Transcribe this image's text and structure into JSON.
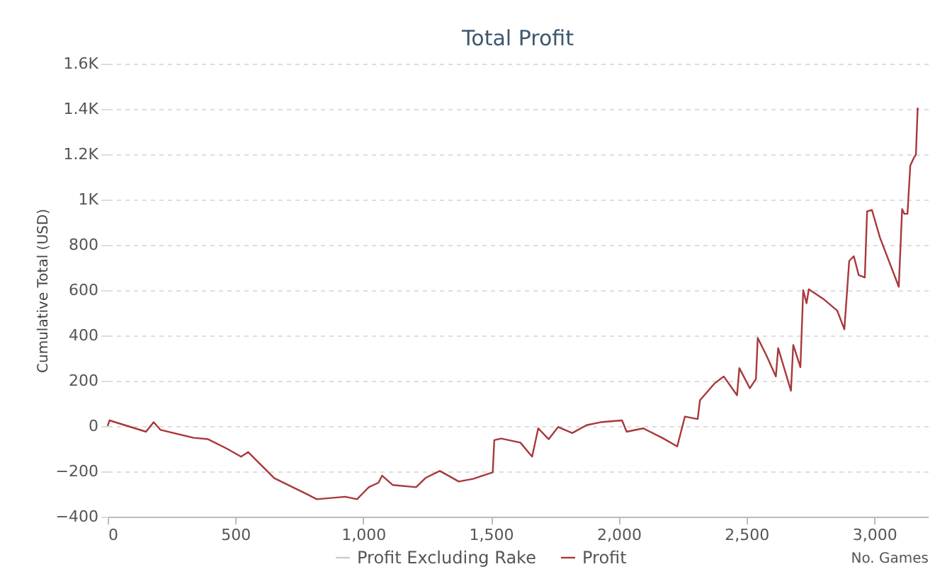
{
  "chart_data": {
    "type": "line",
    "title": "Total Profit",
    "xlabel": "No. Games",
    "ylabel": "Cumulative Total (USD)",
    "xlim": [
      0,
      3210
    ],
    "xticks": [
      {
        "value": 0,
        "label": "0"
      },
      {
        "value": 500,
        "label": "500"
      },
      {
        "value": 1000,
        "label": "1,000"
      },
      {
        "value": 1500,
        "label": "1,500"
      },
      {
        "value": 2000,
        "label": "2,000"
      },
      {
        "value": 2500,
        "label": "2,500"
      },
      {
        "value": 3000,
        "label": "3,000"
      }
    ],
    "ylim": [
      -400,
      1600
    ],
    "yticks": [
      -400,
      -200,
      0,
      200,
      400,
      600,
      800,
      {
        "value": 1000,
        "label": "1K"
      },
      {
        "value": 1200,
        "label": "1.2K"
      },
      {
        "value": 1400,
        "label": "1.4K"
      },
      {
        "value": 1600,
        "label": "1.6K"
      }
    ],
    "grid": "y",
    "legend": "bottom",
    "marker": "none",
    "line_style": "solid",
    "series": [
      {
        "name": "Profit Excluding Rake",
        "color": "#cccccc"
      },
      {
        "name": "Profit",
        "color": "#a8383b",
        "x": [
          0,
          7,
          150,
          180,
          207,
          337,
          393,
          467,
          522,
          550,
          652,
          782,
          818,
          930,
          976,
          1022,
          1060,
          1074,
          1115,
          1207,
          1244,
          1300,
          1374,
          1430,
          1507,
          1513,
          1540,
          1615,
          1661,
          1685,
          1726,
          1763,
          1818,
          1874,
          1929,
          2013,
          2031,
          2096,
          2170,
          2229,
          2259,
          2309,
          2318,
          2374,
          2411,
          2463,
          2472,
          2513,
          2537,
          2544,
          2578,
          2615,
          2624,
          2674,
          2683,
          2711,
          2722,
          2735,
          2744,
          2800,
          2855,
          2883,
          2902,
          2920,
          2939,
          2963,
          2972,
          2991,
          3022,
          3096,
          3109,
          3118,
          3130,
          3141,
          3156,
          3163,
          3170
        ],
        "values": [
          0,
          25,
          -25,
          17,
          -17,
          -52,
          -58,
          -100,
          -135,
          -115,
          -230,
          -302,
          -323,
          -312,
          -323,
          -270,
          -250,
          -219,
          -260,
          -270,
          -229,
          -198,
          -245,
          -233,
          -204,
          -62,
          -55,
          -73,
          -135,
          -10,
          -58,
          -4,
          -31,
          4,
          17,
          25,
          -25,
          -10,
          -52,
          -90,
          42,
          31,
          114,
          187,
          219,
          136,
          256,
          167,
          208,
          389,
          312,
          219,
          344,
          156,
          358,
          260,
          600,
          542,
          604,
          562,
          510,
          427,
          729,
          750,
          667,
          656,
          948,
          954,
          833,
          615,
          958,
          937,
          937,
          1150,
          1187,
          1198,
          1406
        ]
      }
    ]
  }
}
